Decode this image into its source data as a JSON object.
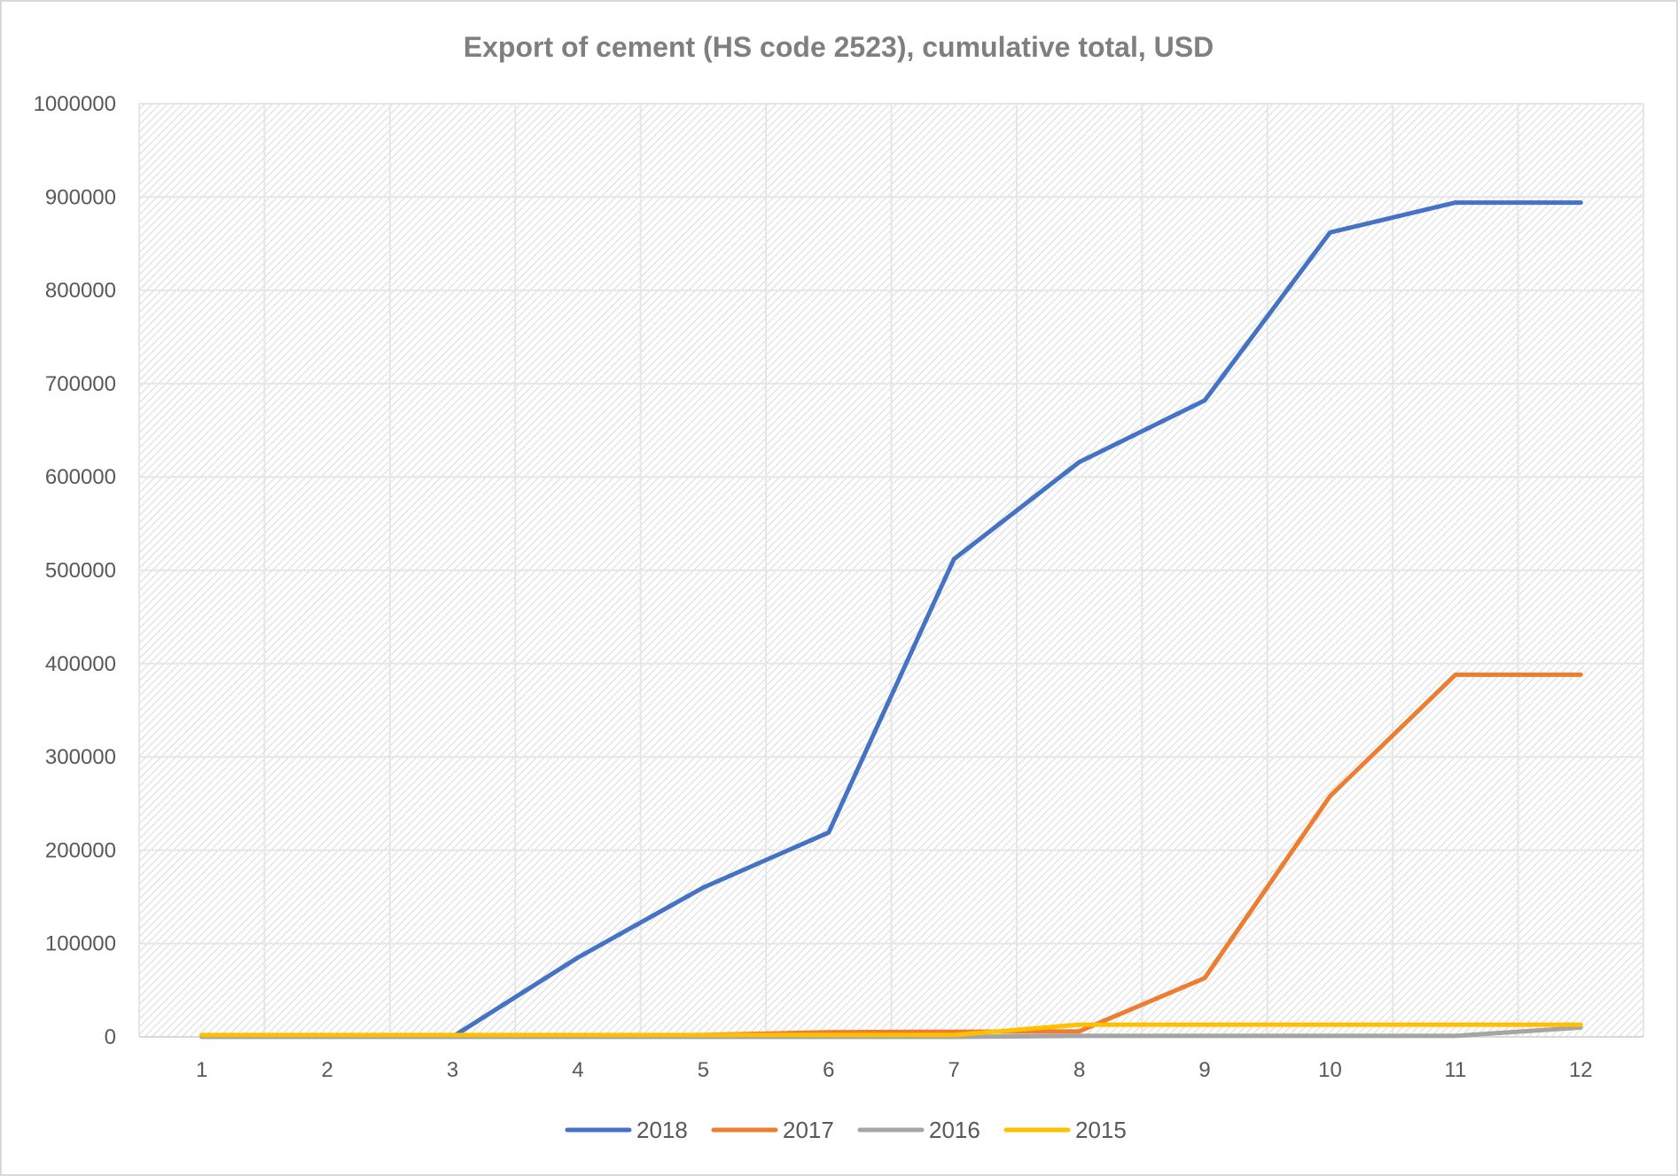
{
  "chart_data": {
    "type": "line",
    "title": "Export of cement (HS code 2523), cumulative total, USD",
    "xlabel": "",
    "ylabel": "",
    "categories": [
      "1",
      "2",
      "3",
      "4",
      "5",
      "6",
      "7",
      "8",
      "9",
      "10",
      "11",
      "12"
    ],
    "ylim": [
      0,
      1000000
    ],
    "yticks": [
      "0",
      "100000",
      "200000",
      "300000",
      "400000",
      "500000",
      "600000",
      "700000",
      "800000",
      "900000",
      "1000000"
    ],
    "grid": true,
    "legend_position": "bottom",
    "series": [
      {
        "name": "2018",
        "color": "#4472c4",
        "values": [
          0,
          0,
          0,
          85000,
          160000,
          219000,
          512000,
          616000,
          682000,
          862000,
          894000,
          894000
        ]
      },
      {
        "name": "2017",
        "color": "#ed7d31",
        "values": [
          0,
          0,
          0,
          1000,
          2000,
          5000,
          5500,
          6000,
          63000,
          258000,
          388000,
          388000
        ]
      },
      {
        "name": "2016",
        "color": "#a5a5a5",
        "values": [
          0,
          0,
          0,
          0,
          0,
          0,
          0,
          1000,
          1000,
          1000,
          1000,
          10000
        ]
      },
      {
        "name": "2015",
        "color": "#ffc000",
        "values": [
          2000,
          2000,
          2000,
          2000,
          2000,
          2000,
          2000,
          13000,
          13000,
          13000,
          13000,
          13000
        ]
      }
    ]
  }
}
